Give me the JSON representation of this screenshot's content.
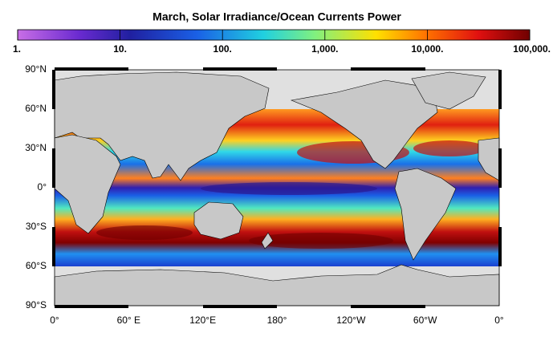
{
  "title": "March, Solar Irradiance/Ocean Currents Power",
  "colorbar": {
    "scale": "log",
    "lim": [
      1,
      100000
    ],
    "ticks": [
      {
        "value": 1,
        "label": "1."
      },
      {
        "value": 10,
        "label": "10."
      },
      {
        "value": 100,
        "label": "100."
      },
      {
        "value": 1000,
        "label": "1,000."
      },
      {
        "value": 10000,
        "label": "10,000."
      },
      {
        "value": 100000,
        "label": "100,000."
      }
    ]
  },
  "lat_labels": [
    "90°N",
    "60°N",
    "30°N",
    "0°",
    "30°S",
    "60°S",
    "90°S"
  ],
  "lon_labels": [
    "0°",
    "60° E",
    "120°E",
    "180°",
    "120°W",
    "60°W",
    "0°"
  ]
}
